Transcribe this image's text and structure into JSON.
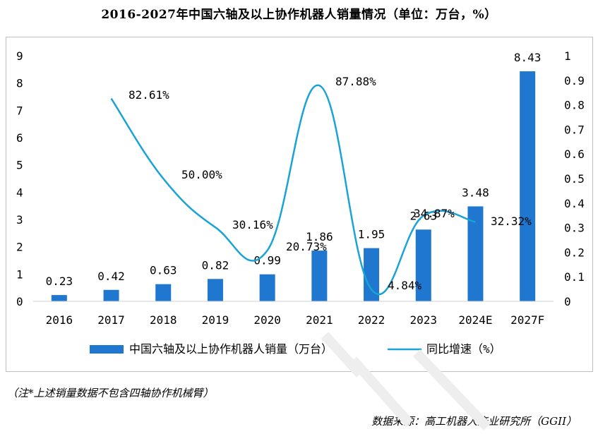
{
  "title": "2016-2027年中国六轴及以上协作机器人销量情况（单位：万台，%）",
  "note": "（注*上述销量数据不包含四轴协作机械臂）",
  "source": "数据来源：高工机器人产业研究所（GGII）",
  "chart_data": {
    "type": "bar+line",
    "categories": [
      "2016",
      "2017",
      "2018",
      "2019",
      "2020",
      "2021",
      "2022",
      "2023",
      "2024E",
      "2027F"
    ],
    "series": [
      {
        "name": "中国六轴及以上协作机器人销量（万台）",
        "type": "bar",
        "axis": "left",
        "color": "#1f77d0",
        "values": [
          0.23,
          0.42,
          0.63,
          0.82,
          0.99,
          1.86,
          1.95,
          2.63,
          3.48,
          8.43
        ],
        "labels": [
          "0.23",
          "0.42",
          "0.63",
          "0.82",
          "0.99",
          "1.86",
          "1.95",
          "2.63",
          "3.48",
          "8.43"
        ]
      },
      {
        "name": "同比增速（%）",
        "type": "line",
        "axis": "right",
        "color": "#1aa3d6",
        "values": [
          null,
          0.8261,
          0.5,
          0.3016,
          0.2073,
          0.8788,
          0.0484,
          0.3487,
          0.3232,
          null
        ],
        "labels": [
          null,
          "82.61%",
          "50.00%",
          "30.16%",
          "20.73%",
          "87.88%",
          "4.84%",
          "34.87%",
          "32.32%",
          null
        ]
      }
    ],
    "y_left": {
      "ylim": [
        0,
        9
      ],
      "ticks": [
        "0",
        "1",
        "2",
        "3",
        "4",
        "5",
        "6",
        "7",
        "8",
        "9"
      ]
    },
    "y_right": {
      "ylim": [
        0,
        1
      ],
      "ticks": [
        "0",
        "0.1",
        "0.2",
        "0.3",
        "0.4",
        "0.5",
        "0.6",
        "0.7",
        "0.8",
        "0.9",
        "1"
      ]
    },
    "grid": false,
    "legend_position": "bottom"
  }
}
